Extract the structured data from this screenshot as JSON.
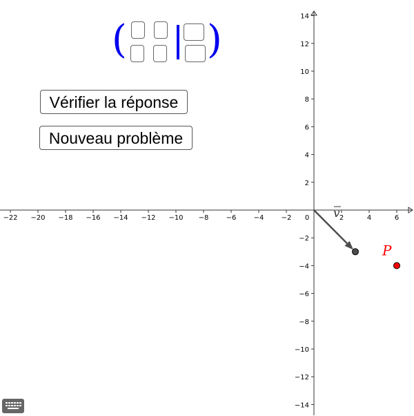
{
  "buttons": {
    "check_label": "Vérifier la réponse",
    "new_problem_label": "Nouveau problème"
  },
  "matrix": {
    "left_paren": "(",
    "right_paren": ")",
    "cells_left": [
      "",
      "",
      "",
      ""
    ],
    "cells_right": [
      "",
      ""
    ]
  },
  "graph": {
    "x_range": [
      -22,
      6
    ],
    "y_range": [
      -14,
      14
    ],
    "x_tick_labels": [
      "−22",
      "−20",
      "−18",
      "−16",
      "−14",
      "−12",
      "−10",
      "−8",
      "−6",
      "−4",
      "−2",
      "0",
      "2",
      "4",
      "6"
    ],
    "y_tick_labels": [
      "14",
      "12",
      "10",
      "8",
      "6",
      "4",
      "2",
      "−2",
      "−4",
      "−6",
      "−8",
      "−10",
      "−12",
      "−14"
    ],
    "vector": {
      "label": "v",
      "from": [
        0,
        0
      ],
      "to": [
        3,
        -3
      ],
      "color": "#4d4d4d"
    },
    "point": {
      "label": "P",
      "x": 6,
      "y": -4,
      "color": "#ff0000"
    }
  },
  "icons": {
    "keyboard": "keyboard-icon"
  }
}
